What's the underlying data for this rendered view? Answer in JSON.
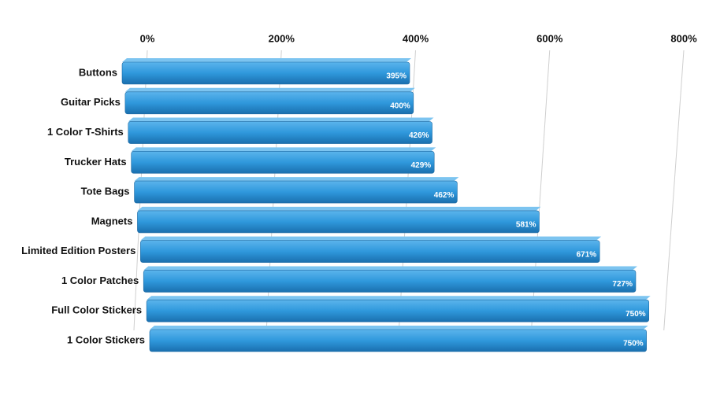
{
  "chart_data": {
    "type": "bar",
    "orientation": "horizontal",
    "color": "#2f98dc",
    "categories": [
      "Buttons",
      "Guitar Picks",
      "1 Color T-Shirts",
      "Trucker Hats",
      "Tote Bags",
      "Magnets",
      "Limited Edition Posters",
      "1 Color Patches",
      "Full Color Stickers",
      "1 Color Stickers"
    ],
    "values": [
      395,
      400,
      426,
      429,
      462,
      581,
      671,
      727,
      750,
      750
    ],
    "value_labels": [
      "395%",
      "400%",
      "426%",
      "429%",
      "462%",
      "581%",
      "671%",
      "727%",
      "750%",
      "750%"
    ],
    "xlim": [
      0,
      800
    ],
    "xticks": [
      {
        "value": 0,
        "label": "0%"
      },
      {
        "value": 200,
        "label": "200%"
      },
      {
        "value": 400,
        "label": "400%"
      },
      {
        "value": 600,
        "label": "600%"
      },
      {
        "value": 800,
        "label": "800%"
      }
    ],
    "grid": true
  }
}
